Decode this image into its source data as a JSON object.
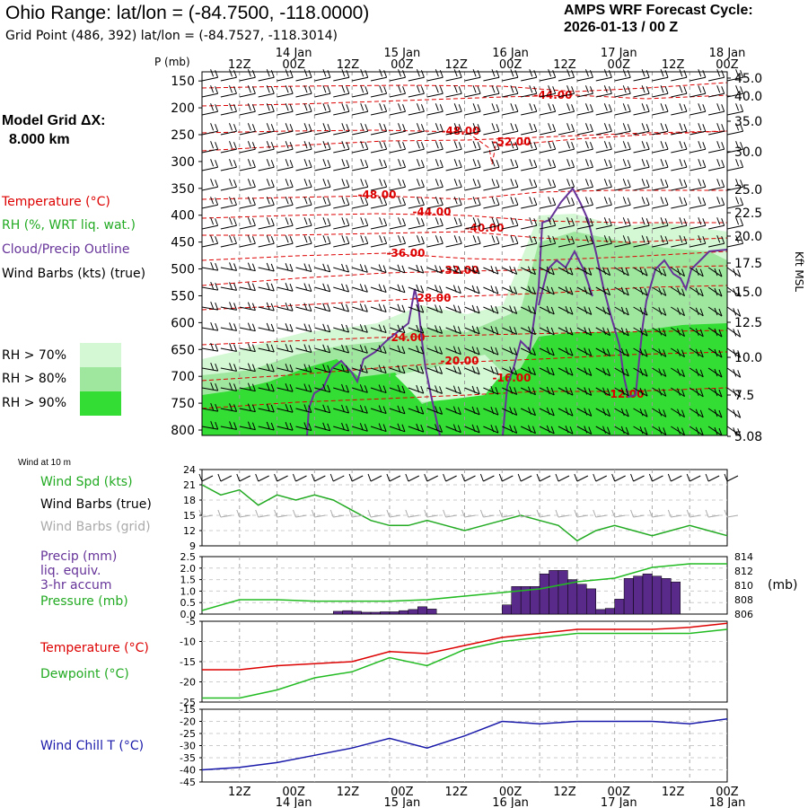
{
  "header": {
    "title": "Ohio Range:  lat/lon = (-84.7500, -118.0000)",
    "subtitle": "Grid Point (486, 392) lat/lon = (-84.7527, -118.3014)",
    "cycle_line1": "AMPS WRF Forecast Cycle:",
    "cycle_line2": "2026-01-13 / 00  Z"
  },
  "model_grid": {
    "line1": "Model Grid ΔX:",
    "line2": "8.000 km"
  },
  "colors": {
    "temperature": "#dd0000",
    "rh": "#22aa22",
    "cloud": "#663399",
    "wind": "#000000",
    "wind_grid": "#aaaaaa",
    "precip": "#5a2a8a",
    "pressure": "#22bb22",
    "dewpoint": "#22bb22",
    "windchill": "#1a1aaa",
    "rh70": "#d4f7d4",
    "rh80": "#9fe69f",
    "rh90": "#33dd33"
  },
  "legend": {
    "temperature": "Temperature (°C)",
    "rh": "RH (%, WRT liq. wat.)",
    "cloud": "Cloud/Precip Outline",
    "wind": "Wind Barbs (kts) (true)",
    "rh70": "RH > 70%",
    "rh80": "RH > 80%",
    "rh90": "RH > 90%"
  },
  "time_axis": {
    "hour_labels": [
      "12Z",
      "00Z",
      "12Z",
      "00Z",
      "12Z",
      "00Z",
      "12Z",
      "00Z",
      "12Z",
      "00Z"
    ],
    "day_labels": [
      {
        "text": "14 Jan",
        "at": 1
      },
      {
        "text": "15 Jan",
        "at": 3
      },
      {
        "text": "16 Jan",
        "at": 5
      },
      {
        "text": "17 Jan",
        "at": 7
      },
      {
        "text": "18 Jan",
        "at": 9
      }
    ]
  },
  "upper_panel": {
    "p_label": "P (mb)",
    "pressure_ticks": [
      150,
      200,
      250,
      300,
      350,
      400,
      450,
      500,
      550,
      600,
      650,
      700,
      750,
      800
    ],
    "right_axis_label": "Kft MSL",
    "height_ticks": [
      "45.0",
      "40.0",
      "35.0",
      "30.0",
      "25.0",
      "22.5",
      "20.0",
      "17.5",
      "15.0",
      "12.5",
      "10.0",
      "7.5",
      "5.08"
    ],
    "temp_contour_labels": [
      "-44.00",
      "-48.00",
      "-52.00",
      "-48.00",
      "-44.00",
      "-40.00",
      "-36.00",
      "-32.00",
      "-28.00",
      "-24.00",
      "-20.00",
      "-16.00",
      "-12.00"
    ]
  },
  "wind10m_panel": {
    "caption": "Wind at 10 m",
    "label_speed": "Wind Spd (kts)",
    "label_barbs": "Wind Barbs (true)",
    "label_grid": "Wind Barbs (grid)",
    "y_ticks": [
      "24",
      "21",
      "18",
      "15",
      "12",
      "9"
    ]
  },
  "precip_panel": {
    "label1": "Precip (mm)",
    "label2": "liq. equiv.",
    "label3": "3-hr accum",
    "label4": "Pressure (mb)",
    "left_ticks": [
      "2.5",
      "2.0",
      "1.5",
      "1.0",
      "0.5",
      "0.0"
    ],
    "right_ticks": [
      "814",
      "812",
      "810",
      "808",
      "806"
    ],
    "right_unit": "(mb)"
  },
  "temp_panel": {
    "label_t": "Temperature (°C)",
    "label_td": "Dewpoint (°C)",
    "y_ticks": [
      "-5",
      "-10",
      "-15",
      "-20",
      "-25"
    ]
  },
  "chill_panel": {
    "label": "Wind Chill T (°C)",
    "y_ticks": [
      "-15",
      "-20",
      "-25",
      "-30",
      "-35",
      "-40",
      "-45"
    ]
  },
  "chart_data": [
    {
      "type": "line",
      "title": "Wind at 10 m",
      "x": [
        0,
        6,
        12,
        18,
        24,
        30,
        36,
        42,
        48,
        54,
        60,
        66,
        72,
        78,
        84,
        90,
        96,
        102,
        108,
        114,
        120,
        126,
        132,
        138,
        144,
        150,
        156,
        162,
        168
      ],
      "series": [
        {
          "name": "Wind Spd (kts)",
          "values": [
            21,
            19,
            20,
            17,
            19,
            18,
            19,
            18,
            16,
            14,
            13,
            13,
            14,
            13,
            12,
            13,
            14,
            15,
            14,
            13,
            10,
            12,
            13,
            12,
            11,
            12,
            13,
            12,
            11
          ]
        }
      ],
      "ylim": [
        9,
        24
      ]
    },
    {
      "type": "bar",
      "title": "Precip (mm) liq. equiv. 3-hr accum",
      "bars": [
        [
          42,
          0.12
        ],
        [
          45,
          0.15
        ],
        [
          48,
          0.12
        ],
        [
          51,
          0.08
        ],
        [
          54,
          0.08
        ],
        [
          57,
          0.1
        ],
        [
          60,
          0.1
        ],
        [
          63,
          0.15
        ],
        [
          66,
          0.2
        ],
        [
          69,
          0.32
        ],
        [
          72,
          0.22
        ],
        [
          96,
          0.4
        ],
        [
          99,
          1.2
        ],
        [
          102,
          1.2
        ],
        [
          105,
          1.2
        ],
        [
          108,
          1.75
        ],
        [
          111,
          1.9
        ],
        [
          114,
          1.9
        ],
        [
          117,
          1.5
        ],
        [
          120,
          1.3
        ],
        [
          123,
          1.1
        ],
        [
          126,
          0.2
        ],
        [
          129,
          0.25
        ],
        [
          132,
          0.65
        ],
        [
          135,
          1.55
        ],
        [
          138,
          1.65
        ],
        [
          141,
          1.75
        ],
        [
          144,
          1.65
        ],
        [
          147,
          1.55
        ],
        [
          150,
          1.4
        ]
      ],
      "series_pressure": {
        "name": "Pressure (mb)",
        "x": [
          0,
          12,
          24,
          36,
          48,
          60,
          72,
          84,
          96,
          108,
          120,
          132,
          144,
          156,
          168
        ],
        "values": [
          806.5,
          808,
          808,
          807.8,
          807.8,
          807.8,
          808,
          808.5,
          809,
          809.5,
          810.5,
          811,
          812.5,
          813,
          813
        ]
      },
      "ylim": [
        0,
        2.5
      ],
      "y2lim": [
        806,
        814
      ]
    },
    {
      "type": "line",
      "x": [
        0,
        12,
        24,
        36,
        48,
        60,
        72,
        84,
        96,
        108,
        120,
        132,
        144,
        156,
        168
      ],
      "series": [
        {
          "name": "Temperature (°C)",
          "values": [
            -17,
            -17,
            -16,
            -15.5,
            -15,
            -12.5,
            -13,
            -11,
            -9,
            -8,
            -7,
            -7,
            -7,
            -6.5,
            -5.5
          ]
        },
        {
          "name": "Dewpoint (°C)",
          "values": [
            -24,
            -24,
            -22,
            -19,
            -17.5,
            -14,
            -16,
            -12,
            -10,
            -9,
            -8,
            -8,
            -8,
            -8,
            -7
          ]
        }
      ],
      "ylim": [
        -25,
        -5
      ]
    },
    {
      "type": "line",
      "x": [
        0,
        12,
        24,
        36,
        48,
        60,
        72,
        84,
        96,
        108,
        120,
        132,
        144,
        156,
        168
      ],
      "series": [
        {
          "name": "Wind Chill T (°C)",
          "values": [
            -40,
            -39,
            -37,
            -34,
            -31,
            -27,
            -31,
            -26,
            -20,
            -21,
            -20,
            -20,
            -20,
            -21,
            -19
          ]
        }
      ],
      "ylim": [
        -45,
        -15
      ]
    }
  ]
}
